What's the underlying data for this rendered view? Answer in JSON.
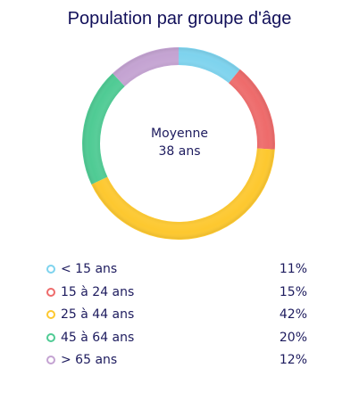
{
  "chart_data": {
    "type": "pie",
    "title": "Population par groupe d'âge",
    "center_label": {
      "line1": "Moyenne",
      "line2": "38 ans"
    },
    "categories": [
      "< 15 ans",
      "15 à 24 ans",
      "25 à 44 ans",
      "45 à 64 ans",
      "> 65 ans"
    ],
    "values": [
      11,
      15,
      42,
      20,
      12
    ],
    "value_labels": [
      "11%",
      "15%",
      "42%",
      "20%",
      "12%"
    ],
    "colors": [
      "#7ed3ee",
      "#ee6b6b",
      "#fdc82f",
      "#4fcb94",
      "#c4a3d2"
    ],
    "legend_position": "bottom"
  }
}
